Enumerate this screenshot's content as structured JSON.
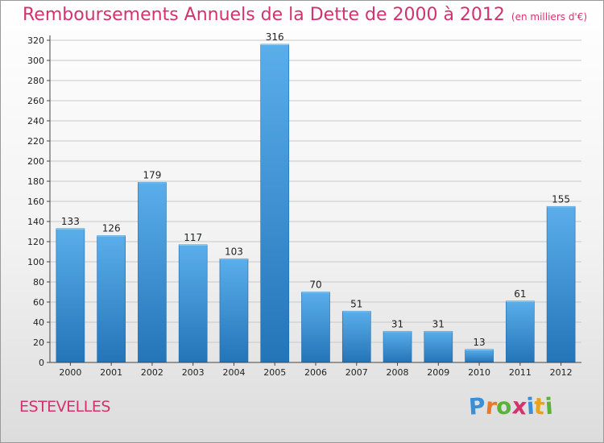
{
  "header": {
    "title": "Remboursements Annuels de la Dette de 2000 à 2012",
    "subtitle": "(en milliers d'€)"
  },
  "footer": {
    "commune": "ESTEVELLES",
    "logo_letters": [
      "P",
      "r",
      "o",
      "x",
      "i",
      "t",
      "i"
    ],
    "logo_colors": [
      "#3a8fd6",
      "#e8792b",
      "#5bb335",
      "#d6336c",
      "#3a8fd6",
      "#e8a21b",
      "#5bb335"
    ]
  },
  "colors": {
    "bar_top": "#5aaeea",
    "bar_bottom": "#2474b8",
    "grid": "#c8c8c8",
    "axis": "#444444"
  },
  "chart_data": {
    "type": "bar",
    "categories": [
      "2000",
      "2001",
      "2002",
      "2003",
      "2004",
      "2005",
      "2006",
      "2007",
      "2008",
      "2009",
      "2010",
      "2011",
      "2012"
    ],
    "values": [
      133,
      126,
      179,
      117,
      103,
      316,
      70,
      51,
      31,
      31,
      13,
      61,
      155
    ],
    "data_labels": [
      "133",
      "126",
      "179",
      "117",
      "103",
      "316",
      "70",
      "51",
      "31",
      "31",
      "13",
      "61",
      "155"
    ],
    "yticks": [
      "0",
      "20",
      "40",
      "60",
      "80",
      "100",
      "120",
      "140",
      "160",
      "180",
      "200",
      "220",
      "240",
      "260",
      "280",
      "300",
      "320"
    ],
    "ylim": [
      0,
      320
    ],
    "grid": true
  }
}
